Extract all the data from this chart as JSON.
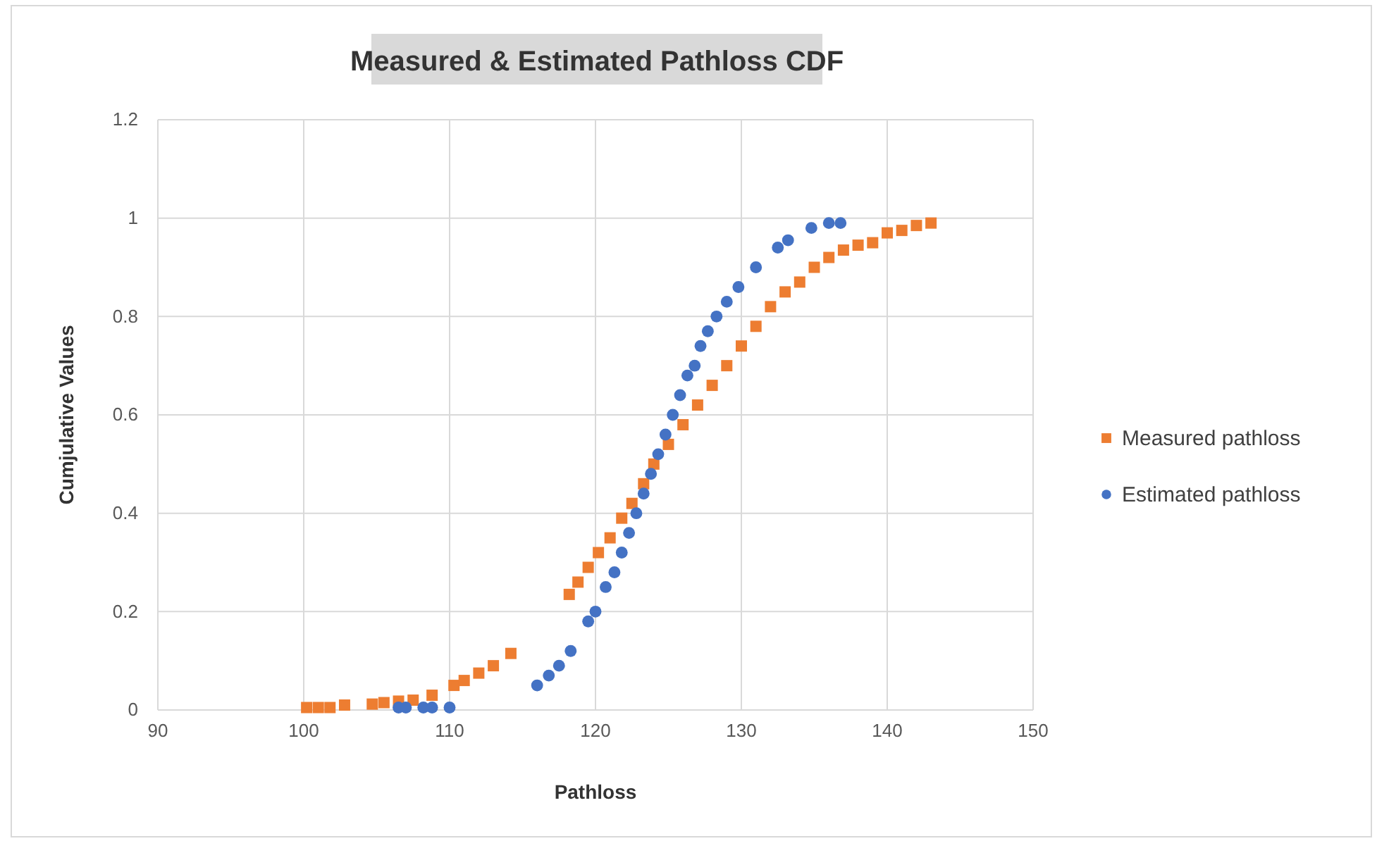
{
  "chart_data": {
    "type": "scatter",
    "title": "Measured & Estimated Pathloss CDF",
    "xlabel": "Pathloss",
    "ylabel": "Cumjulative Values",
    "xlim": [
      90,
      150
    ],
    "xticks": [
      90,
      100,
      110,
      120,
      130,
      140,
      150
    ],
    "ylim": [
      0,
      1.2
    ],
    "yticks": [
      0,
      0.2,
      0.4,
      0.6,
      0.8,
      1,
      1.2
    ],
    "grid": true,
    "legend": "right",
    "series": [
      {
        "name": "Measured pathloss",
        "color": "#ed7d31",
        "marker": "square",
        "x": [
          100.2,
          101,
          101.8,
          102.8,
          104.7,
          105.5,
          106.5,
          107.5,
          108.8,
          110.3,
          111,
          112,
          113,
          114.2,
          118.2,
          118.8,
          119.5,
          120.2,
          121,
          121.8,
          122.5,
          123.3,
          124,
          125,
          126,
          127,
          128,
          129,
          130,
          131,
          132,
          133,
          134,
          135,
          136,
          137,
          138,
          139,
          140,
          141,
          142,
          143
        ],
        "values": [
          0.005,
          0.005,
          0.005,
          0.01,
          0.012,
          0.015,
          0.018,
          0.02,
          0.03,
          0.05,
          0.06,
          0.075,
          0.09,
          0.115,
          0.235,
          0.26,
          0.29,
          0.32,
          0.35,
          0.39,
          0.42,
          0.46,
          0.5,
          0.54,
          0.58,
          0.62,
          0.66,
          0.7,
          0.74,
          0.78,
          0.82,
          0.85,
          0.87,
          0.9,
          0.92,
          0.935,
          0.945,
          0.95,
          0.97,
          0.975,
          0.985,
          0.99
        ]
      },
      {
        "name": "Estimated pathloss",
        "color": "#4472c4",
        "marker": "circle",
        "x": [
          106.5,
          107,
          108.2,
          108.8,
          110,
          116,
          116.8,
          117.5,
          118.3,
          119.5,
          120,
          120.7,
          121.3,
          121.8,
          122.3,
          122.8,
          123.3,
          123.8,
          124.3,
          124.8,
          125.3,
          125.8,
          126.3,
          126.8,
          127.2,
          127.7,
          128.3,
          129,
          129.8,
          131,
          132.5,
          133.2,
          134.8,
          136,
          136.8
        ],
        "values": [
          0.005,
          0.005,
          0.005,
          0.005,
          0.005,
          0.05,
          0.07,
          0.09,
          0.12,
          0.18,
          0.2,
          0.25,
          0.28,
          0.32,
          0.36,
          0.4,
          0.44,
          0.48,
          0.52,
          0.56,
          0.6,
          0.64,
          0.68,
          0.7,
          0.74,
          0.77,
          0.8,
          0.83,
          0.86,
          0.9,
          0.94,
          0.955,
          0.98,
          0.99,
          0.99
        ]
      }
    ]
  }
}
